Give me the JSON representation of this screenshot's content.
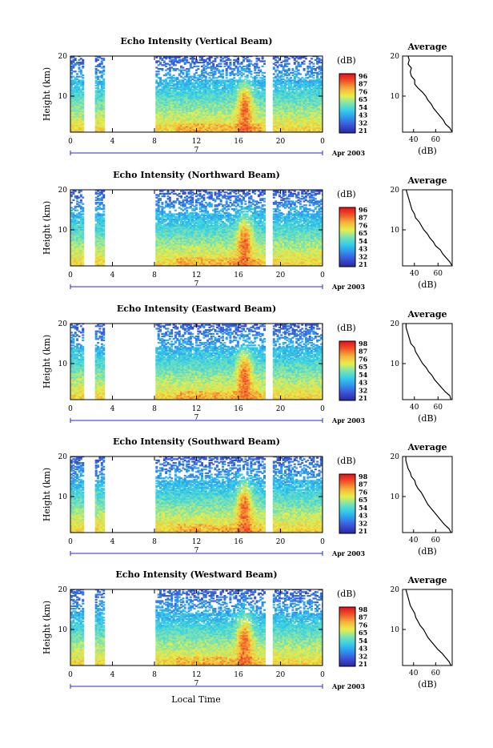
{
  "chart_data": [
    {
      "type": "heatmap",
      "title": "Echo Intensity (Vertical Beam)",
      "ylabel": "Height (km)",
      "xticks": [
        "0",
        "4",
        "8",
        "12",
        "16",
        "20",
        "0"
      ],
      "yticks": [
        "20",
        "10"
      ],
      "date_day": "7",
      "date_label": "Apr 2003",
      "colorbar_title": "(dB)",
      "colorbar_ticks": [
        "96",
        "87",
        "76",
        "65",
        "54",
        "43",
        "32",
        "21"
      ],
      "avg_title": "Average",
      "avg_xlabel": "(dB)",
      "avg_xticks": [
        "40",
        "60"
      ],
      "avg_yticks": [
        "20",
        "10"
      ],
      "avg_xlim": [
        30,
        75
      ],
      "avg_profile": {
        "height_km": [
          1,
          2,
          3,
          4,
          5,
          6,
          7,
          8,
          9,
          10,
          11,
          12,
          13,
          14,
          15,
          16,
          17,
          18,
          19,
          20
        ],
        "db": [
          75,
          73,
          69,
          67,
          64,
          61,
          58,
          56,
          53,
          51,
          48,
          44,
          41,
          41,
          38,
          37,
          38,
          35,
          36,
          35
        ]
      }
    },
    {
      "type": "heatmap",
      "title": "Echo Intensity (Northward Beam)",
      "ylabel": "Height (km)",
      "xticks": [
        "0",
        "4",
        "8",
        "12",
        "16",
        "20",
        "0"
      ],
      "yticks": [
        "20",
        "10"
      ],
      "date_day": "7",
      "date_label": "Apr 2003",
      "colorbar_title": "(dB)",
      "colorbar_ticks": [
        "96",
        "87",
        "76",
        "65",
        "54",
        "43",
        "32",
        "21"
      ],
      "avg_title": "Average",
      "avg_xlabel": "(dB)",
      "avg_xticks": [
        "40",
        "60"
      ],
      "avg_yticks": [
        "20",
        "10"
      ],
      "avg_xlim": [
        30,
        72
      ],
      "avg_profile": {
        "height_km": [
          1,
          2,
          3,
          4,
          5,
          6,
          7,
          8,
          9,
          10,
          11,
          12,
          13,
          14,
          15,
          16,
          17,
          18,
          19,
          20
        ],
        "db": [
          72,
          70,
          67,
          64,
          62,
          58,
          56,
          53,
          51,
          48,
          46,
          44,
          41,
          40,
          38,
          37,
          36,
          35,
          34,
          33
        ]
      }
    },
    {
      "type": "heatmap",
      "title": "Echo Intensity (Eastward Beam)",
      "ylabel": "Height (km)",
      "xticks": [
        "0",
        "4",
        "8",
        "12",
        "16",
        "20",
        "0"
      ],
      "yticks": [
        "20",
        "10"
      ],
      "date_day": "7",
      "date_label": "Apr 2003",
      "colorbar_title": "(dB)",
      "colorbar_ticks": [
        "98",
        "87",
        "76",
        "65",
        "54",
        "43",
        "32",
        "21"
      ],
      "avg_title": "Average",
      "avg_xlabel": "(dB)",
      "avg_xticks": [
        "40",
        "60"
      ],
      "avg_yticks": [
        "20",
        "10"
      ],
      "avg_xlim": [
        30,
        72
      ],
      "avg_profile": {
        "height_km": [
          1,
          2,
          3,
          4,
          5,
          6,
          7,
          8,
          9,
          10,
          11,
          12,
          13,
          14,
          15,
          16,
          17,
          18,
          19,
          20
        ],
        "db": [
          71,
          70,
          66,
          63,
          60,
          57,
          55,
          52,
          50,
          47,
          45,
          43,
          41,
          40,
          37,
          36,
          35,
          34,
          33,
          33
        ]
      }
    },
    {
      "type": "heatmap",
      "title": "Echo Intensity (Southward Beam)",
      "ylabel": "Height (km)",
      "xticks": [
        "0",
        "4",
        "8",
        "12",
        "16",
        "20",
        "0"
      ],
      "yticks": [
        "20",
        "10"
      ],
      "date_day": "7",
      "date_label": "Apr 2003",
      "colorbar_title": "(dB)",
      "colorbar_ticks": [
        "98",
        "87",
        "76",
        "65",
        "54",
        "43",
        "32",
        "21"
      ],
      "avg_title": "Average",
      "avg_xlabel": "(dB)",
      "avg_xticks": [
        "40",
        "60"
      ],
      "avg_yticks": [
        "20",
        "10"
      ],
      "avg_xlim": [
        30,
        75
      ],
      "avg_profile": {
        "height_km": [
          1,
          2,
          3,
          4,
          5,
          6,
          7,
          8,
          9,
          10,
          11,
          12,
          13,
          14,
          15,
          16,
          17,
          18,
          19,
          20
        ],
        "db": [
          74,
          72,
          68,
          65,
          62,
          59,
          56,
          53,
          51,
          49,
          47,
          44,
          42,
          41,
          38,
          37,
          35,
          34,
          33,
          33
        ]
      }
    },
    {
      "type": "heatmap",
      "title": "Echo Intensity (Westward Beam)",
      "ylabel": "Height (km)",
      "xticks": [
        "0",
        "4",
        "8",
        "12",
        "16",
        "20",
        "0"
      ],
      "yticks": [
        "20",
        "10"
      ],
      "date_day": "7",
      "date_label": "Apr 2003",
      "colorbar_title": "(dB)",
      "colorbar_ticks": [
        "98",
        "87",
        "76",
        "65",
        "54",
        "43",
        "32",
        "21"
      ],
      "avg_title": "Average",
      "avg_xlabel": "(dB)",
      "avg_xticks": [
        "40",
        "60"
      ],
      "avg_yticks": [
        "20",
        "10"
      ],
      "avg_xlim": [
        30,
        75
      ],
      "avg_profile": {
        "height_km": [
          1,
          2,
          3,
          4,
          5,
          6,
          7,
          8,
          9,
          10,
          11,
          12,
          13,
          14,
          15,
          16,
          17,
          18,
          19,
          20
        ],
        "db": [
          74,
          72,
          69,
          66,
          62,
          59,
          56,
          53,
          51,
          49,
          46,
          44,
          42,
          41,
          39,
          37,
          36,
          35,
          34,
          33
        ]
      }
    }
  ],
  "shared": {
    "xlabel": "Local Time",
    "x_range_hours": [
      0,
      24
    ],
    "height_range_km": [
      1,
      20
    ],
    "data_gaps_hours": [
      [
        1.1,
        2.3
      ],
      [
        3.2,
        8.0
      ],
      [
        18.4,
        19.2
      ]
    ],
    "colormap": [
      "#2b2ba8",
      "#3c55d8",
      "#2f96ee",
      "#35cfe8",
      "#7fe3b0",
      "#e7ef4a",
      "#f6b43a",
      "#f05a2a",
      "#e8141e"
    ]
  }
}
